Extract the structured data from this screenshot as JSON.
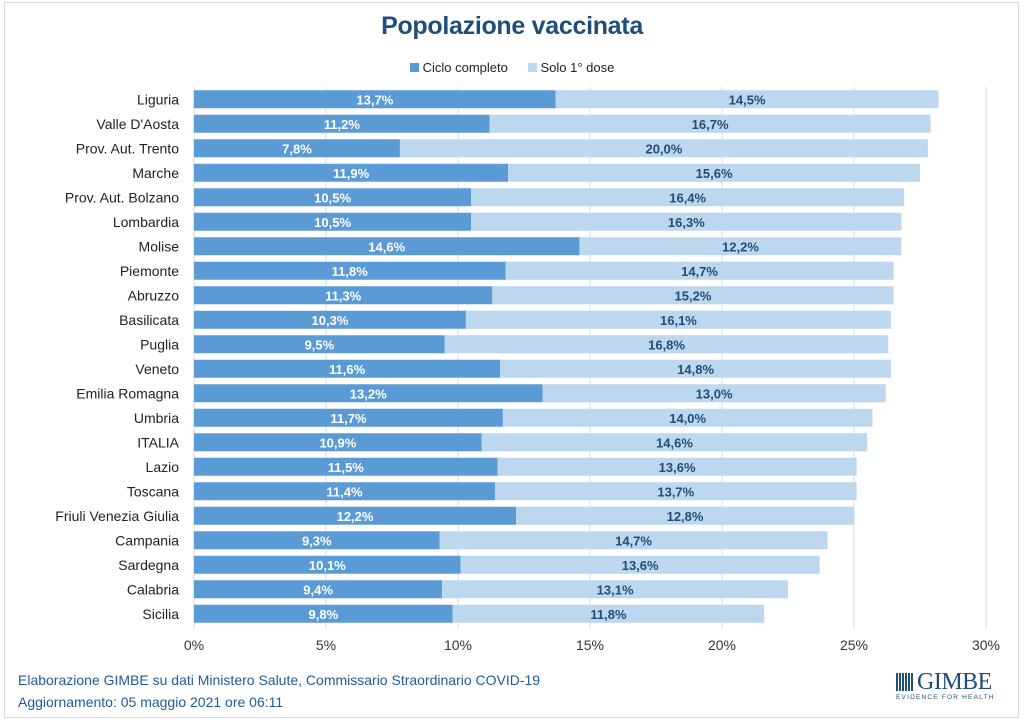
{
  "chart_data": {
    "type": "bar",
    "orientation": "horizontal",
    "stacked": true,
    "title": "Popolazione vaccinata",
    "xlabel": "",
    "ylabel": "",
    "xlim": [
      0,
      30
    ],
    "x_ticks": [
      "0%",
      "5%",
      "10%",
      "15%",
      "20%",
      "25%",
      "30%"
    ],
    "x_tick_values": [
      0,
      5,
      10,
      15,
      20,
      25,
      30
    ],
    "grid": true,
    "legend_position": "top-center",
    "categories": [
      "Liguria",
      "Valle D'Aosta",
      "Prov. Aut. Trento",
      "Marche",
      "Prov. Aut. Bolzano",
      "Lombardia",
      "Molise",
      "Piemonte",
      "Abruzzo",
      "Basilicata",
      "Puglia",
      "Veneto",
      "Emilia Romagna",
      "Umbria",
      "ITALIA",
      "Lazio",
      "Toscana",
      "Friuli Venezia Giulia",
      "Campania",
      "Sardegna",
      "Calabria",
      "Sicilia"
    ],
    "series": [
      {
        "name": "Ciclo completo",
        "color": "#5b9bd5",
        "label_color": "#ffffff",
        "values": [
          13.7,
          11.2,
          7.8,
          11.9,
          10.5,
          10.5,
          14.6,
          11.8,
          11.3,
          10.3,
          9.5,
          11.6,
          13.2,
          11.7,
          10.9,
          11.5,
          11.4,
          12.2,
          9.3,
          10.1,
          9.4,
          9.8
        ],
        "labels": [
          "13,7%",
          "11,2%",
          "7,8%",
          "11,9%",
          "10,5%",
          "10,5%",
          "14,6%",
          "11,8%",
          "11,3%",
          "10,3%",
          "9,5%",
          "11,6%",
          "13,2%",
          "11,7%",
          "10,9%",
          "11,5%",
          "11,4%",
          "12,2%",
          "9,3%",
          "10,1%",
          "9,4%",
          "9,8%"
        ]
      },
      {
        "name": "Solo 1° dose",
        "color": "#bdd7ee",
        "label_color": "#1f4e79",
        "values": [
          14.5,
          16.7,
          20.0,
          15.6,
          16.4,
          16.3,
          12.2,
          14.7,
          15.2,
          16.1,
          16.8,
          14.8,
          13.0,
          14.0,
          14.6,
          13.6,
          13.7,
          12.8,
          14.7,
          13.6,
          13.1,
          11.8
        ],
        "labels": [
          "14,5%",
          "16,7%",
          "20,0%",
          "15,6%",
          "16,4%",
          "16,3%",
          "12,2%",
          "14,7%",
          "15,2%",
          "16,1%",
          "16,8%",
          "14,8%",
          "13,0%",
          "14,0%",
          "14,6%",
          "13,6%",
          "13,7%",
          "12,8%",
          "14,7%",
          "13,6%",
          "13,1%",
          "11,8%"
        ]
      }
    ]
  },
  "colors": {
    "title": "#1f4e79",
    "footer": "#1f5c99",
    "grid": "#d9d9d9",
    "axis_text": "#333333"
  },
  "footer": {
    "source": "Elaborazione GIMBE su dati Ministero Salute, Commissario Straordinario COVID-19",
    "updated": "Aggiornamento: 05 maggio 2021 ore 06:11"
  },
  "logo": {
    "name": "GIMBE",
    "tagline": "EVIDENCE FOR HEALTH"
  }
}
